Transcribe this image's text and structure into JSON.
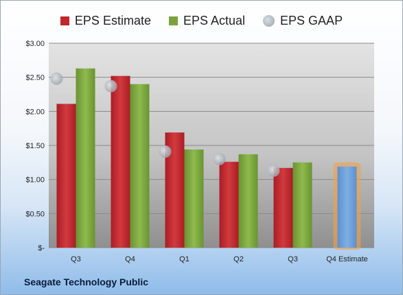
{
  "legend": {
    "estimate": "EPS Estimate",
    "actual": "EPS Actual",
    "gaap": "EPS GAAP"
  },
  "footer": "Seagate Technology Public",
  "colors": {
    "estimate": "#c0262c",
    "actual": "#7aa33c",
    "gaap": "#a7aeb6",
    "forecast": "#6d9ed6",
    "forecast_glow": "#f0a24a"
  },
  "chart_data": {
    "type": "bar",
    "categories": [
      "Q3",
      "Q4",
      "Q1",
      "Q2",
      "Q3",
      "Q4 Estimate"
    ],
    "series": [
      {
        "name": "EPS Estimate",
        "values": [
          2.11,
          2.52,
          1.69,
          1.26,
          1.17,
          null
        ]
      },
      {
        "name": "EPS Actual",
        "values": [
          2.63,
          2.4,
          1.44,
          1.37,
          1.25,
          null
        ]
      },
      {
        "name": "EPS GAAP",
        "values": [
          2.48,
          2.37,
          1.41,
          1.3,
          1.13,
          null
        ]
      }
    ],
    "forecast": {
      "category": "Q4 Estimate",
      "value": 1.19
    },
    "ylim": [
      0,
      3.0
    ],
    "yticks": [
      0,
      0.5,
      1.0,
      1.5,
      2.0,
      2.5,
      3.0
    ],
    "ytick_labels": [
      "$-",
      "$0.50",
      "$1.00",
      "$1.50",
      "$2.00",
      "$2.50",
      "$3.00"
    ],
    "grid": true,
    "legend_position": "top"
  }
}
